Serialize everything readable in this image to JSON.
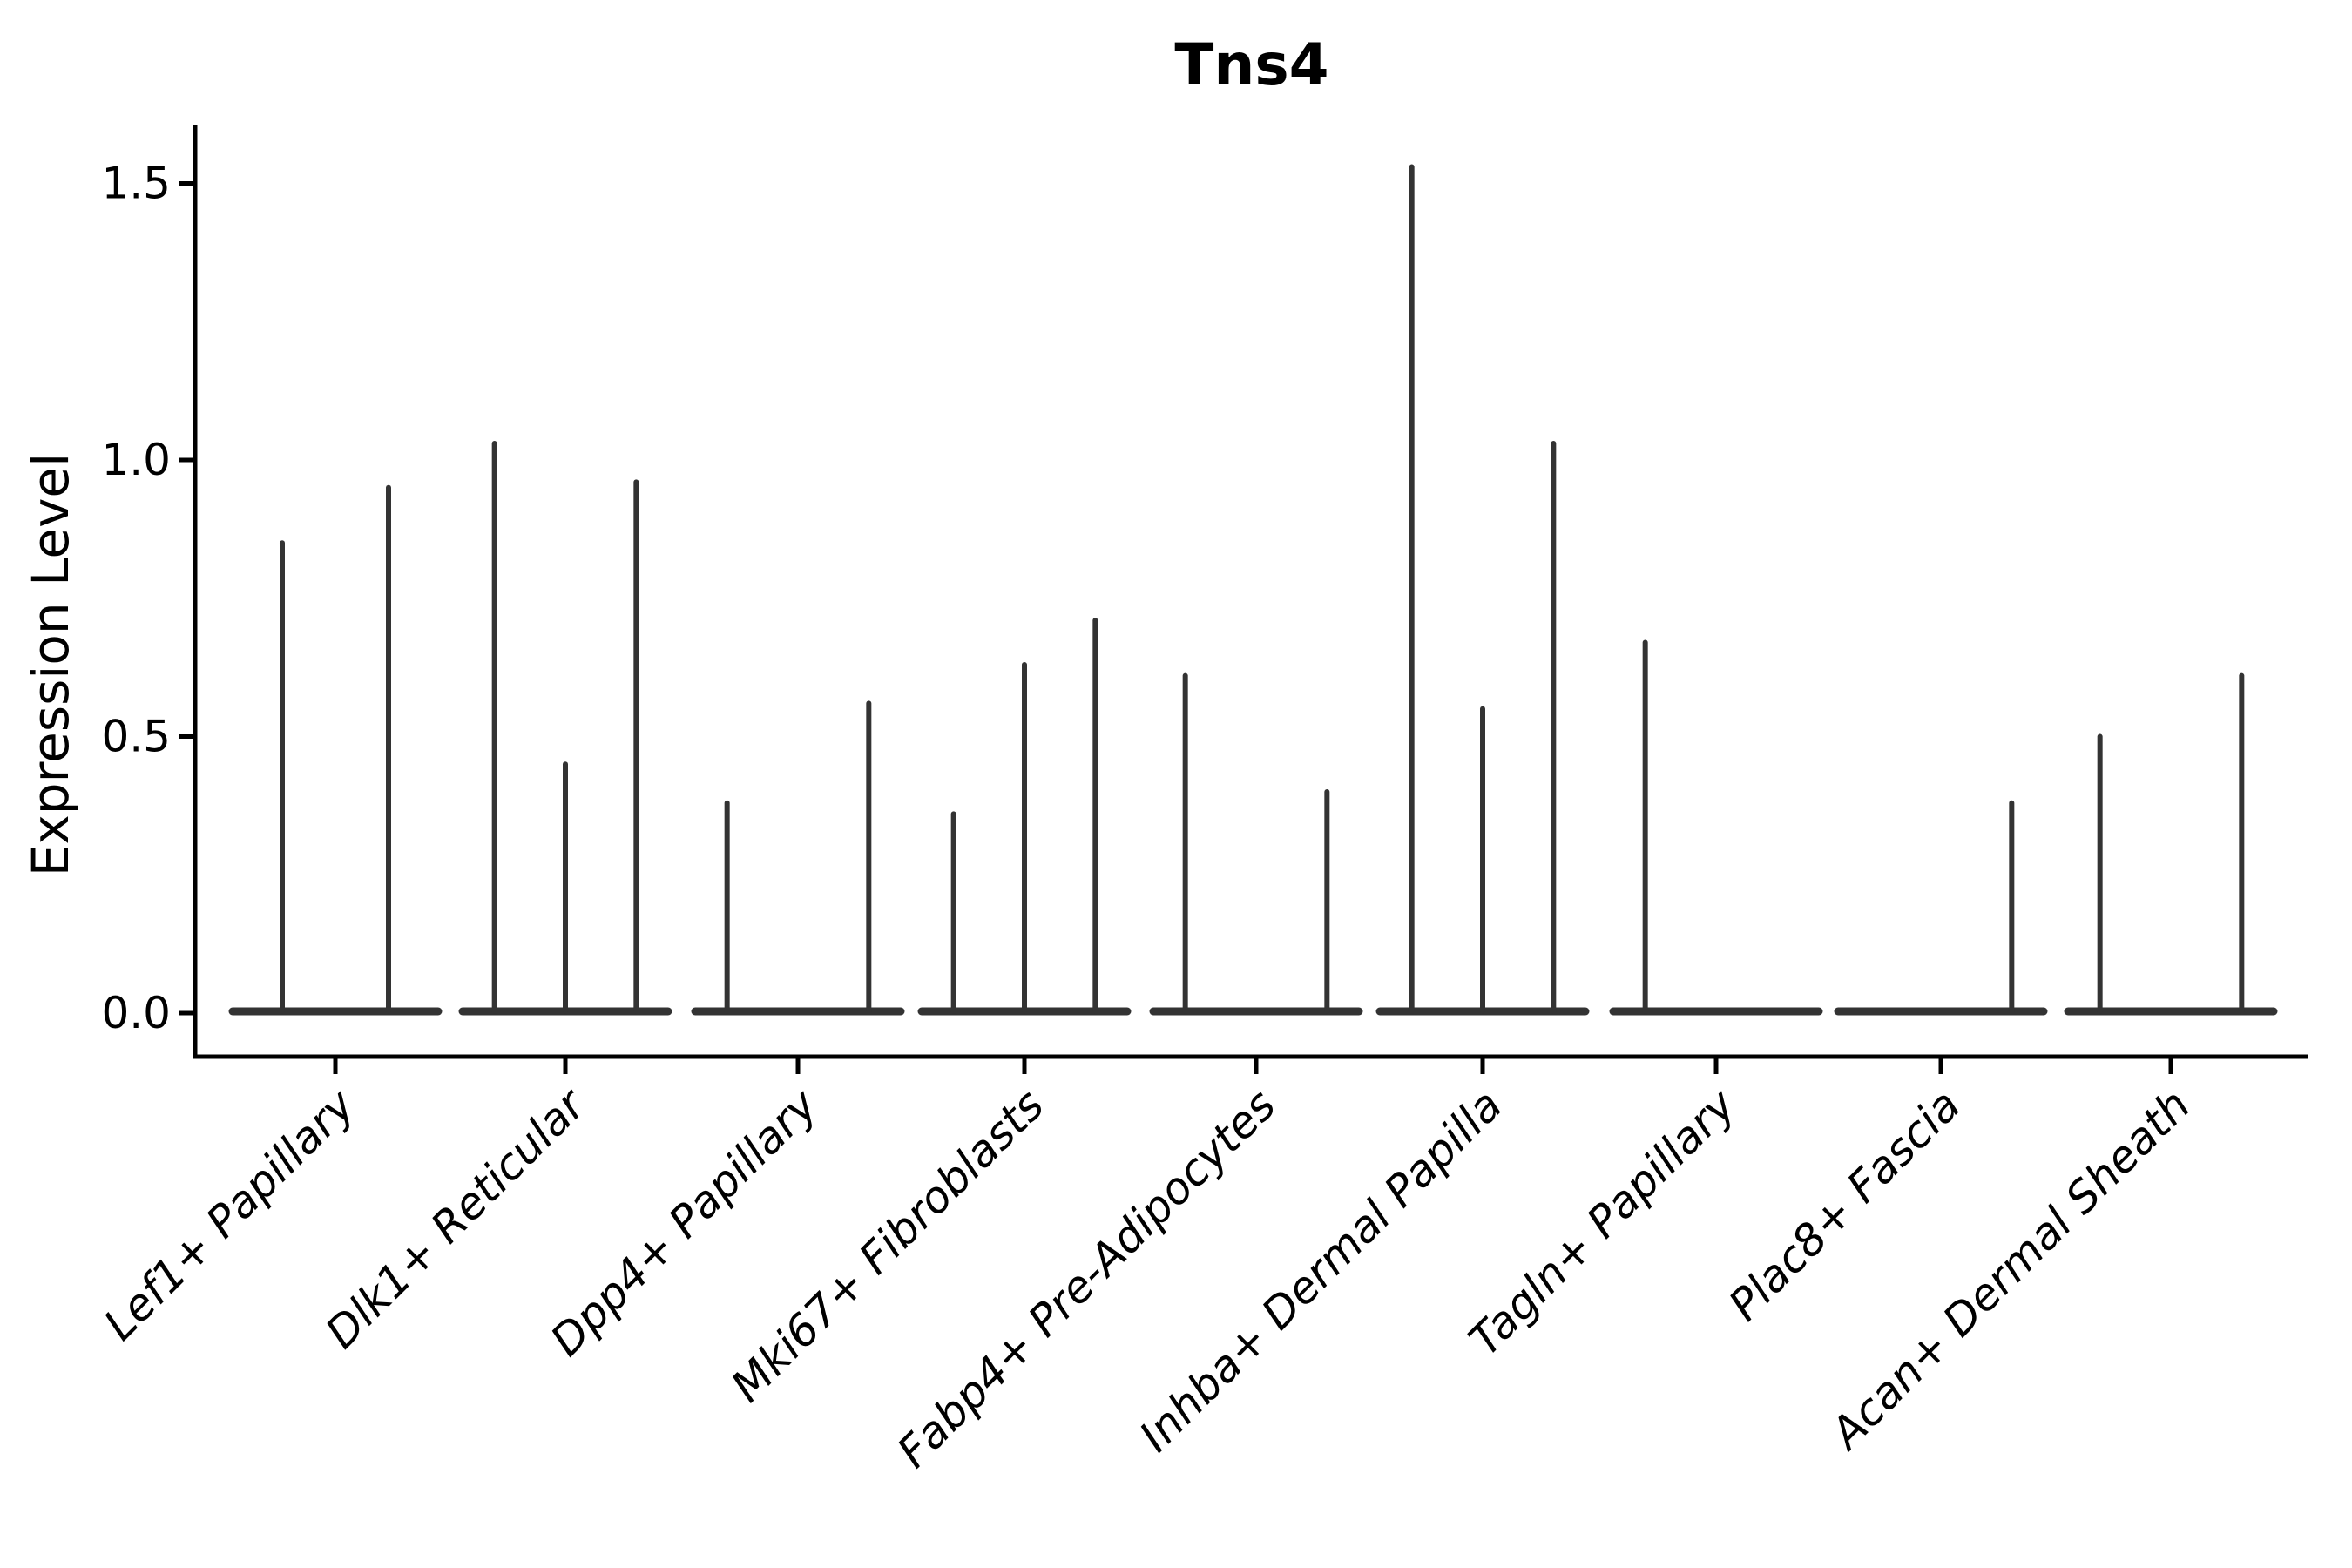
{
  "chart_data": {
    "type": "violin",
    "title": "Tns4",
    "xlabel": "",
    "ylabel": "Expression Level",
    "ylim": [
      -0.07,
      1.6
    ],
    "yticks": [
      0,
      0.5,
      1.0,
      1.5
    ],
    "ytick_labels": [
      "0.0",
      "0.5",
      "1.0",
      "1.5"
    ],
    "grid": false,
    "legend": "none",
    "style": {
      "violin_color": "#333333",
      "axis_color": "#000000",
      "background": "#ffffff"
    },
    "categories": [
      "Lef1+ Papillary",
      "Dlk1+ Reticular",
      "Dpp4+ Papillary",
      "Mki67+ Fibroblasts",
      "Fabp4+ Pre-Adipocytes",
      "Inhba+ Dermal Papilla",
      "Tagln+ Papillary",
      "Plac8+ Fascia",
      "Acan+ Dermal Sheath"
    ],
    "groups": [
      {
        "label": "Lef1+ Papillary",
        "violin_max_values": [
          0.85,
          0.95
        ]
      },
      {
        "label": "Dlk1+ Reticular",
        "violin_max_values": [
          1.03,
          0.45,
          0.96
        ]
      },
      {
        "label": "Dpp4+ Papillary",
        "violin_max_values": [
          0.38,
          0,
          0.56
        ]
      },
      {
        "label": "Mki67+ Fibroblasts",
        "violin_max_values": [
          0.36,
          0.63,
          0.71
        ]
      },
      {
        "label": "Fabp4+ Pre-Adipocytes",
        "violin_max_values": [
          0.61,
          0,
          0.4
        ]
      },
      {
        "label": "Inhba+ Dermal Papilla",
        "violin_max_values": [
          1.53,
          0.55,
          1.03
        ]
      },
      {
        "label": "Tagln+ Papillary",
        "violin_max_values": [
          0.67,
          0,
          0
        ]
      },
      {
        "label": "Plac8+ Fascia",
        "violin_max_values": [
          0,
          0,
          0.38
        ]
      },
      {
        "label": "Acan+ Dermal Sheath",
        "violin_max_values": [
          0.5,
          0,
          0.61
        ]
      }
    ],
    "notes": "Each category contains adjacent violins collapsed flat at expression 0 with a thin spike up to the listed maximum; a value of 0 means a flat violin with no spike."
  }
}
